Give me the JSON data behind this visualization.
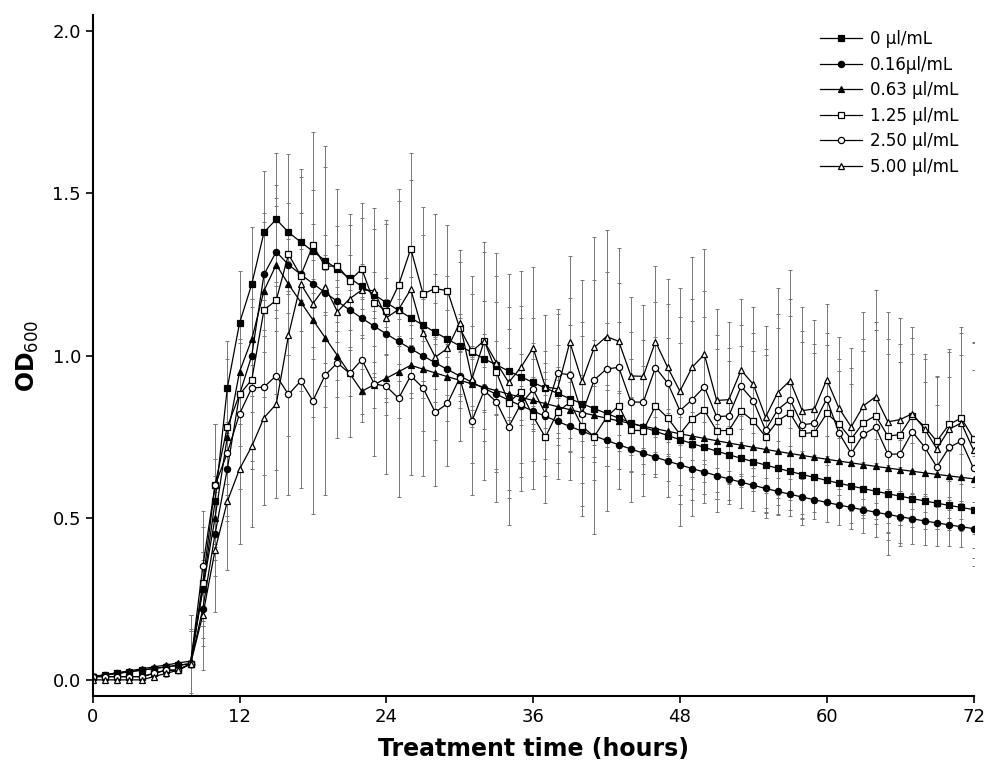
{
  "title": "",
  "xlabel": "Treatment time (hours)",
  "ylabel": "OD$_{600}$",
  "xlim": [
    0,
    72
  ],
  "ylim": [
    -0.05,
    2.05
  ],
  "yticks": [
    0.0,
    0.5,
    1.0,
    1.5,
    2.0
  ],
  "xticks": [
    0,
    12,
    24,
    36,
    48,
    60,
    72
  ],
  "background_color": "#ffffff",
  "legend_labels": [
    "0 μl/mL",
    "0.16μl/mL",
    "0.63 μl/mL",
    "1.25 μl/mL",
    "2.50 μl/mL",
    "5.00 μl/mL"
  ],
  "series_config": [
    {
      "marker": "s",
      "filled": true
    },
    {
      "marker": "o",
      "filled": true
    },
    {
      "marker": "^",
      "filled": true
    },
    {
      "marker": "s",
      "filled": false
    },
    {
      "marker": "o",
      "filled": false
    },
    {
      "marker": "^",
      "filled": false
    }
  ]
}
